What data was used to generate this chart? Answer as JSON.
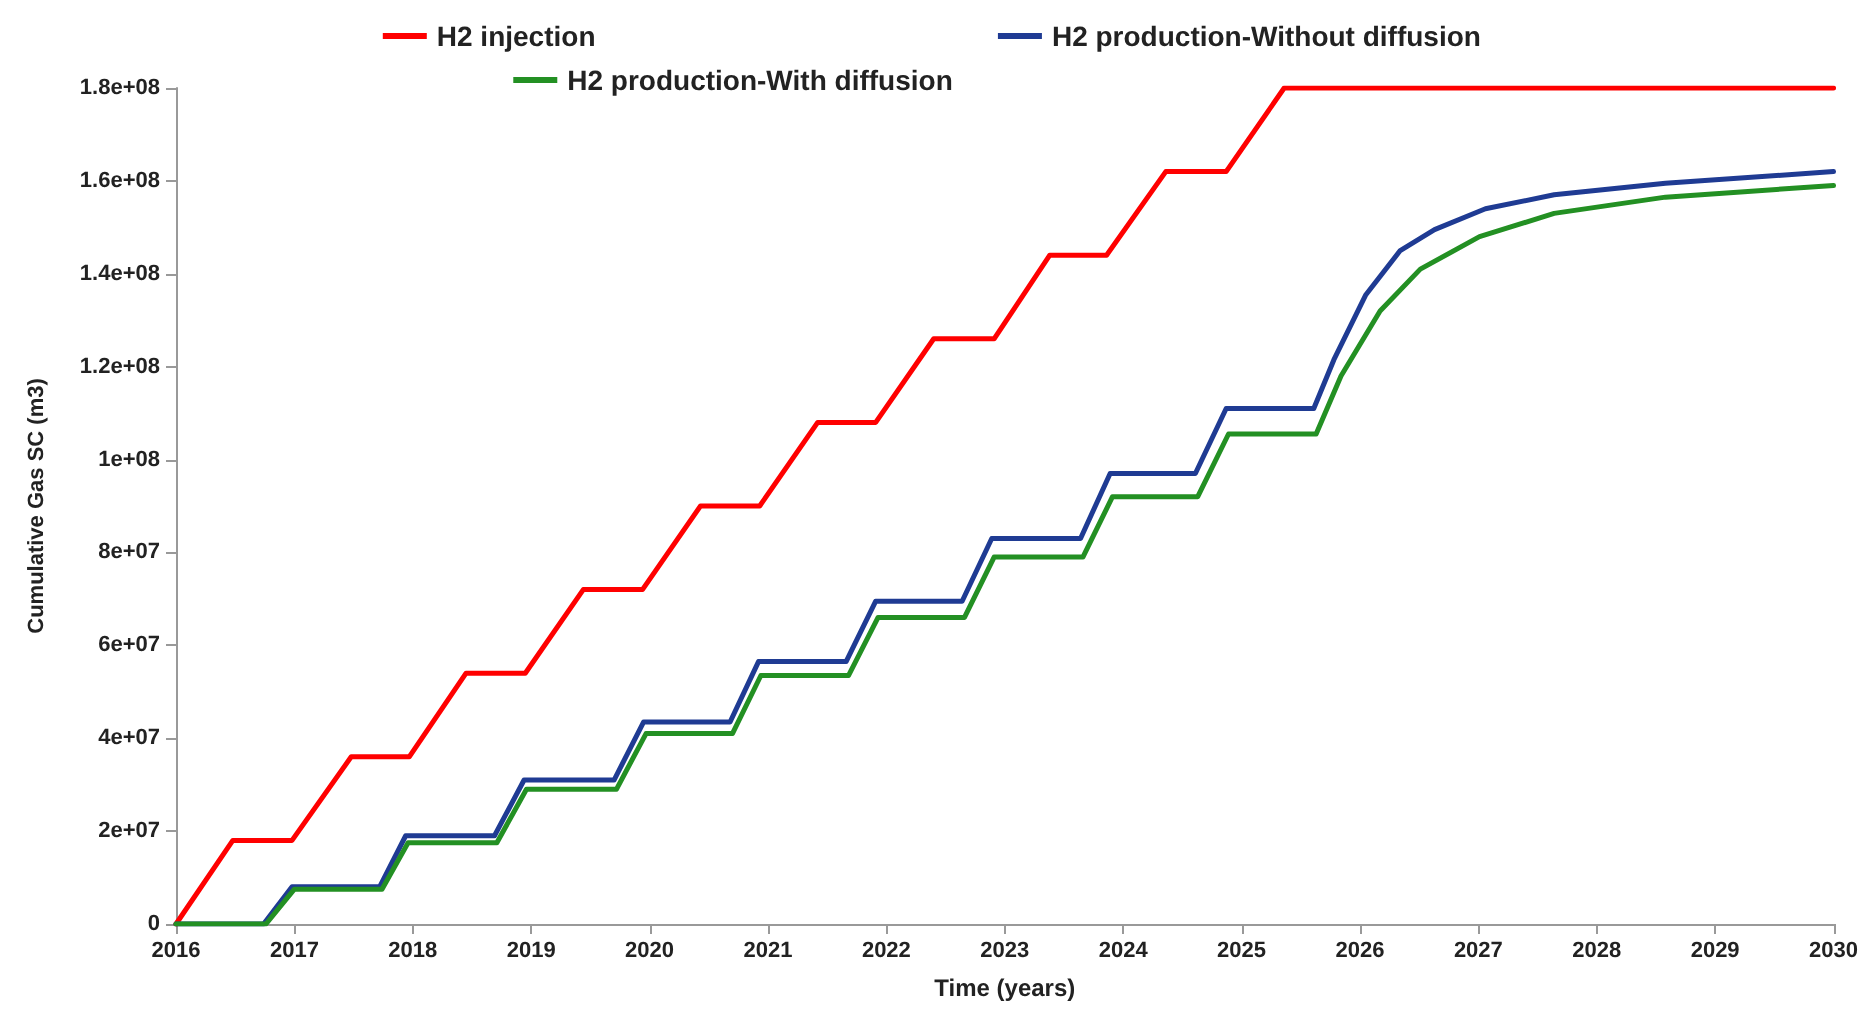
{
  "chart_data": {
    "type": "line",
    "xlabel": "Time (years)",
    "ylabel": "Cumulative Gas SC (m3)",
    "xlim": [
      2016,
      2030
    ],
    "xticks": [
      2016,
      2017,
      2018,
      2019,
      2020,
      2021,
      2022,
      2023,
      2024,
      2025,
      2026,
      2027,
      2028,
      2029,
      2030
    ],
    "ylim": [
      0,
      180000000
    ],
    "yticks": [
      0,
      {
        "value": 20000000,
        "label": "2e+07"
      },
      {
        "value": 40000000,
        "label": "4e+07"
      },
      {
        "value": 60000000,
        "label": "6e+07"
      },
      {
        "value": 80000000,
        "label": "8e+07"
      },
      {
        "value": 100000000,
        "label": "1e+08"
      },
      {
        "value": 120000000,
        "label": "1.2e+08"
      },
      {
        "value": 140000000,
        "label": "1.4e+08"
      },
      {
        "value": 160000000,
        "label": "1.6e+08"
      },
      {
        "value": 180000000,
        "label": "1.8e+08"
      }
    ],
    "grid": false,
    "legend": "top",
    "marker": "none",
    "line_style": "solid",
    "series": [
      {
        "name": "H2 injection",
        "color": "#ff0000",
        "x": [
          2016,
          2016.48,
          2016.98,
          2017.48,
          2017.97,
          2018.45,
          2018.95,
          2019.44,
          2019.94,
          2020.43,
          2020.93,
          2021.42,
          2021.91,
          2022.4,
          2022.91,
          2023.38,
          2023.86,
          2024.36,
          2024.87,
          2025.36,
          2030
        ],
        "values": [
          0,
          18000000,
          18000000,
          36000000,
          36000000,
          54000000,
          54000000,
          72000000,
          72000000,
          90000000,
          90000000,
          108000000,
          108000000,
          126000000,
          126000000,
          144000000,
          144000000,
          162000000,
          162000000,
          180000000,
          180000000
        ]
      },
      {
        "name": "H2 production-Without diffusion",
        "color": "#1f3b93",
        "x": [
          2016,
          2016.74,
          2016.98,
          2017.72,
          2017.94,
          2018.69,
          2018.94,
          2019.7,
          2019.95,
          2020.68,
          2020.92,
          2021.66,
          2021.91,
          2022.64,
          2022.89,
          2023.64,
          2023.89,
          2024.61,
          2024.87,
          2025.61,
          2025.78,
          2026.05,
          2026.34,
          2026.63,
          2027.06,
          2027.64,
          2028.58,
          2030
        ],
        "values": [
          0,
          0,
          8000000,
          8000000,
          19000000,
          19000000,
          31000000,
          31000000,
          43500000,
          43500000,
          56500000,
          56500000,
          69500000,
          69500000,
          83000000,
          83000000,
          97000000,
          97000000,
          111000000,
          111000000,
          121500000,
          135500000,
          145000000,
          149500000,
          154000000,
          157000000,
          159500000,
          162000000
        ]
      },
      {
        "name": "H2 production-With diffusion",
        "color": "#239023",
        "x": [
          2016,
          2016.76,
          2017.0,
          2017.74,
          2017.96,
          2018.71,
          2018.96,
          2019.72,
          2019.97,
          2020.7,
          2020.94,
          2021.68,
          2021.93,
          2022.66,
          2022.91,
          2023.66,
          2023.91,
          2024.63,
          2024.89,
          2025.63,
          2025.84,
          2026.17,
          2026.51,
          2027.01,
          2027.64,
          2028.58,
          2030
        ],
        "values": [
          0,
          0,
          7500000,
          7500000,
          17500000,
          17500000,
          29000000,
          29000000,
          41000000,
          41000000,
          53500000,
          53500000,
          66000000,
          66000000,
          79000000,
          79000000,
          92000000,
          92000000,
          105500000,
          105500000,
          118000000,
          132000000,
          141000000,
          148000000,
          153000000,
          156500000,
          159000000
        ]
      }
    ]
  }
}
